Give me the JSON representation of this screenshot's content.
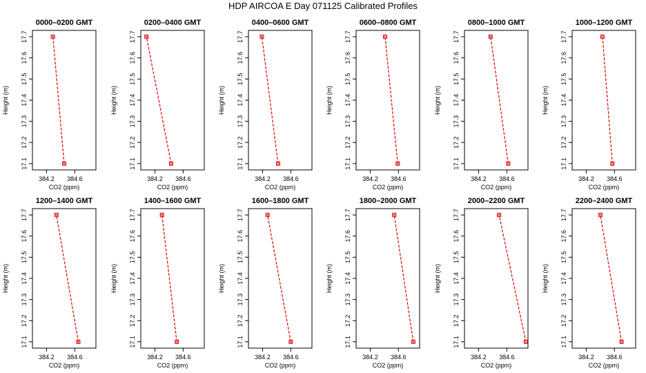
{
  "title": "HDP  AIRCOA E  Day 071125  Calibrated Profiles",
  "line_color": "#dd0000",
  "chart_data": [
    {
      "type": "line",
      "title": "0000–0200 GMT",
      "xlabel": "CO2 (ppm)",
      "ylabel": "Height (m)",
      "xlim": [
        384.0,
        384.9
      ],
      "ylim": [
        17.07,
        17.73
      ],
      "xticks": [
        384.2,
        384.6
      ],
      "xtick_labels": [
        "384.2",
        "384.6"
      ],
      "yticks": [
        17.1,
        17.2,
        17.3,
        17.4,
        17.5,
        17.6,
        17.7
      ],
      "ytick_labels": [
        "17.1",
        "17.2",
        "17.3",
        "17.4",
        "17.5",
        "17.6",
        "17.7"
      ],
      "x": [
        384.45,
        384.29
      ],
      "y": [
        17.1,
        17.7
      ]
    },
    {
      "type": "line",
      "title": "0200–0400 GMT",
      "xlabel": "CO2 (ppm)",
      "ylabel": "Height (m)",
      "xlim": [
        384.0,
        384.9
      ],
      "ylim": [
        17.07,
        17.73
      ],
      "xticks": [
        384.2,
        384.6
      ],
      "xtick_labels": [
        "384.2",
        "384.6"
      ],
      "yticks": [
        17.1,
        17.2,
        17.3,
        17.4,
        17.5,
        17.6,
        17.7
      ],
      "ytick_labels": [
        "17.1",
        "17.2",
        "17.3",
        "17.4",
        "17.5",
        "17.6",
        "17.7"
      ],
      "x": [
        384.43,
        384.08
      ],
      "y": [
        17.1,
        17.7
      ]
    },
    {
      "type": "line",
      "title": "0400–0600 GMT",
      "xlabel": "CO2 (ppm)",
      "ylabel": "Height (m)",
      "xlim": [
        384.0,
        384.9
      ],
      "ylim": [
        17.07,
        17.73
      ],
      "xticks": [
        384.2,
        384.6
      ],
      "xtick_labels": [
        "384.2",
        "384.6"
      ],
      "yticks": [
        17.1,
        17.2,
        17.3,
        17.4,
        17.5,
        17.6,
        17.7
      ],
      "ytick_labels": [
        "17.1",
        "17.2",
        "17.3",
        "17.4",
        "17.5",
        "17.6",
        "17.7"
      ],
      "x": [
        384.42,
        384.19
      ],
      "y": [
        17.1,
        17.7
      ]
    },
    {
      "type": "line",
      "title": "0600–0800 GMT",
      "xlabel": "CO2 (ppm)",
      "ylabel": "Height (m)",
      "xlim": [
        384.0,
        384.9
      ],
      "ylim": [
        17.07,
        17.73
      ],
      "xticks": [
        384.2,
        384.6
      ],
      "xtick_labels": [
        "384.2",
        "384.6"
      ],
      "yticks": [
        17.1,
        17.2,
        17.3,
        17.4,
        17.5,
        17.6,
        17.7
      ],
      "ytick_labels": [
        "17.1",
        "17.2",
        "17.3",
        "17.4",
        "17.5",
        "17.6",
        "17.7"
      ],
      "x": [
        384.59,
        384.41
      ],
      "y": [
        17.1,
        17.7
      ]
    },
    {
      "type": "line",
      "title": "0800–1000 GMT",
      "xlabel": "CO2 (ppm)",
      "ylabel": "Height (m)",
      "xlim": [
        384.0,
        384.9
      ],
      "ylim": [
        17.07,
        17.73
      ],
      "xticks": [
        384.2,
        384.6
      ],
      "xtick_labels": [
        "384.2",
        "384.6"
      ],
      "yticks": [
        17.1,
        17.2,
        17.3,
        17.4,
        17.5,
        17.6,
        17.7
      ],
      "ytick_labels": [
        "17.1",
        "17.2",
        "17.3",
        "17.4",
        "17.5",
        "17.6",
        "17.7"
      ],
      "x": [
        384.62,
        384.37
      ],
      "y": [
        17.1,
        17.7
      ]
    },
    {
      "type": "line",
      "title": "1000–1200 GMT",
      "xlabel": "CO2 (ppm)",
      "ylabel": "Height (m)",
      "xlim": [
        384.0,
        384.9
      ],
      "ylim": [
        17.07,
        17.73
      ],
      "xticks": [
        384.2,
        384.6
      ],
      "xtick_labels": [
        "384.2",
        "384.6"
      ],
      "yticks": [
        17.1,
        17.2,
        17.3,
        17.4,
        17.5,
        17.6,
        17.7
      ],
      "ytick_labels": [
        "17.1",
        "17.2",
        "17.3",
        "17.4",
        "17.5",
        "17.6",
        "17.7"
      ],
      "x": [
        384.57,
        384.43
      ],
      "y": [
        17.1,
        17.7
      ]
    },
    {
      "type": "line",
      "title": "1200–1400 GMT",
      "xlabel": "CO2 (ppm)",
      "ylabel": "Height (m)",
      "xlim": [
        384.0,
        384.9
      ],
      "ylim": [
        17.07,
        17.73
      ],
      "xticks": [
        384.2,
        384.6
      ],
      "xtick_labels": [
        "384.2",
        "384.6"
      ],
      "yticks": [
        17.1,
        17.2,
        17.3,
        17.4,
        17.5,
        17.6,
        17.7
      ],
      "ytick_labels": [
        "17.1",
        "17.2",
        "17.3",
        "17.4",
        "17.5",
        "17.6",
        "17.7"
      ],
      "x": [
        384.65,
        384.34
      ],
      "y": [
        17.1,
        17.7
      ]
    },
    {
      "type": "line",
      "title": "1400–1600 GMT",
      "xlabel": "CO2 (ppm)",
      "ylabel": "Height (m)",
      "xlim": [
        384.0,
        384.9
      ],
      "ylim": [
        17.07,
        17.73
      ],
      "xticks": [
        384.2,
        384.6
      ],
      "xtick_labels": [
        "384.2",
        "384.6"
      ],
      "yticks": [
        17.1,
        17.2,
        17.3,
        17.4,
        17.5,
        17.6,
        17.7
      ],
      "ytick_labels": [
        "17.1",
        "17.2",
        "17.3",
        "17.4",
        "17.5",
        "17.6",
        "17.7"
      ],
      "x": [
        384.51,
        384.3
      ],
      "y": [
        17.1,
        17.7
      ]
    },
    {
      "type": "line",
      "title": "1600–1800 GMT",
      "xlabel": "CO2 (ppm)",
      "ylabel": "Height (m)",
      "xlim": [
        384.0,
        384.9
      ],
      "ylim": [
        17.07,
        17.73
      ],
      "xticks": [
        384.2,
        384.6
      ],
      "xtick_labels": [
        "384.2",
        "384.6"
      ],
      "yticks": [
        17.1,
        17.2,
        17.3,
        17.4,
        17.5,
        17.6,
        17.7
      ],
      "ytick_labels": [
        "17.1",
        "17.2",
        "17.3",
        "17.4",
        "17.5",
        "17.6",
        "17.7"
      ],
      "x": [
        384.6,
        384.27
      ],
      "y": [
        17.1,
        17.7
      ]
    },
    {
      "type": "line",
      "title": "1800–2000 GMT",
      "xlabel": "CO2 (ppm)",
      "ylabel": "Height (m)",
      "xlim": [
        384.0,
        384.9
      ],
      "ylim": [
        17.07,
        17.73
      ],
      "xticks": [
        384.2,
        384.6
      ],
      "xtick_labels": [
        "384.2",
        "384.6"
      ],
      "yticks": [
        17.1,
        17.2,
        17.3,
        17.4,
        17.5,
        17.6,
        17.7
      ],
      "ytick_labels": [
        "17.1",
        "17.2",
        "17.3",
        "17.4",
        "17.5",
        "17.6",
        "17.7"
      ],
      "x": [
        384.81,
        384.54
      ],
      "y": [
        17.1,
        17.7
      ]
    },
    {
      "type": "line",
      "title": "2000–2200 GMT",
      "xlabel": "CO2 (ppm)",
      "ylabel": "Height (m)",
      "xlim": [
        384.0,
        384.9
      ],
      "ylim": [
        17.07,
        17.73
      ],
      "xticks": [
        384.2,
        384.6
      ],
      "xtick_labels": [
        "384.2",
        "384.6"
      ],
      "yticks": [
        17.1,
        17.2,
        17.3,
        17.4,
        17.5,
        17.6,
        17.7
      ],
      "ytick_labels": [
        "17.1",
        "17.2",
        "17.3",
        "17.4",
        "17.5",
        "17.6",
        "17.7"
      ],
      "x": [
        384.87,
        384.49
      ],
      "y": [
        17.1,
        17.7
      ]
    },
    {
      "type": "line",
      "title": "2200–2400 GMT",
      "xlabel": "CO2 (ppm)",
      "ylabel": "Height (m)",
      "xlim": [
        384.0,
        384.9
      ],
      "ylim": [
        17.07,
        17.73
      ],
      "xticks": [
        384.2,
        384.6
      ],
      "xtick_labels": [
        "384.2",
        "384.6"
      ],
      "yticks": [
        17.1,
        17.2,
        17.3,
        17.4,
        17.5,
        17.6,
        17.7
      ],
      "ytick_labels": [
        "17.1",
        "17.2",
        "17.3",
        "17.4",
        "17.5",
        "17.6",
        "17.7"
      ],
      "x": [
        384.7,
        384.4
      ],
      "y": [
        17.1,
        17.7
      ]
    }
  ]
}
